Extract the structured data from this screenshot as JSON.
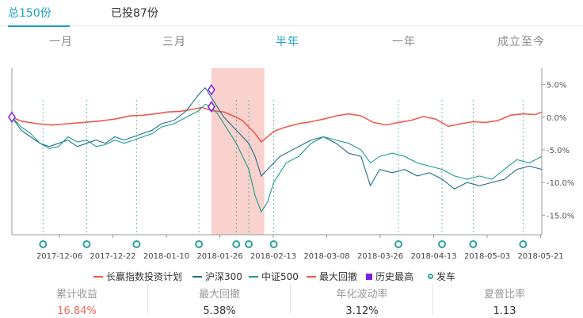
{
  "tabs": {
    "total": "总150份",
    "invested": "已投87份"
  },
  "ranges": [
    "一月",
    "三月",
    "半年",
    "一年",
    "成立至今"
  ],
  "active_range": 2,
  "legend": {
    "plan": "长赢指数投资计划",
    "hs300": "沪深300",
    "zz500": "中证500",
    "drawdown": "最大回撤",
    "high": "历史最高",
    "signal": "发车"
  },
  "colors": {
    "plan": "#f05a4a",
    "hs300": "#1f6e8c",
    "zz500": "#1a9c8c",
    "drawdown": "#f8c9c4",
    "high": "#7b1fe0",
    "signal": "#2aa39a",
    "active": "#1aa1c4"
  },
  "stats": [
    {
      "label": "累计收益",
      "value": "16.84%",
      "highlight": true
    },
    {
      "label": "最大回撤",
      "value": "5.38%",
      "highlight": false
    },
    {
      "label": "年化波动率",
      "value": "3.12%",
      "highlight": false
    },
    {
      "label": "夏普比率",
      "value": "1.13",
      "highlight": false
    }
  ],
  "chart_data": {
    "type": "line",
    "x_labels": [
      "2017-12-06",
      "2017-12-22",
      "2018-01-10",
      "2018-01-26",
      "2018-02-13",
      "2018-03-08",
      "2018-03-26",
      "2018-04-13",
      "2018-05-03",
      "2018-05-21"
    ],
    "yticks": [
      5.0,
      0.0,
      -5.0,
      -10.0,
      -15.0
    ],
    "ytick_labels": [
      "5.0%",
      "0.0%",
      "-5.0%",
      "-10.0%",
      "-15.0%"
    ],
    "ylim": [
      -18,
      7.5
    ],
    "x_days": [
      0,
      170
    ],
    "series": [
      {
        "name": "长赢指数投资计划",
        "points": [
          [
            0,
            0
          ],
          [
            3,
            -0.6
          ],
          [
            8,
            -1
          ],
          [
            13,
            -1.2
          ],
          [
            18,
            -1.0
          ],
          [
            23,
            -0.8
          ],
          [
            28,
            -0.6
          ],
          [
            33,
            -0.3
          ],
          [
            38,
            0.2
          ],
          [
            42,
            0.3
          ],
          [
            46,
            0.5
          ],
          [
            50,
            0.8
          ],
          [
            54,
            0.9
          ],
          [
            58,
            1.2
          ],
          [
            61,
            1.5
          ],
          [
            64,
            1.0
          ],
          [
            68,
            0.8
          ],
          [
            71,
            0.2
          ],
          [
            74,
            -0.5
          ],
          [
            76,
            -1.5
          ],
          [
            78,
            -2.5
          ],
          [
            80,
            -3.8
          ],
          [
            82,
            -3.0
          ],
          [
            84,
            -2.2
          ],
          [
            86,
            -1.8
          ],
          [
            88,
            -1.5
          ],
          [
            92,
            -1.0
          ],
          [
            96,
            -0.7
          ],
          [
            100,
            -0.3
          ],
          [
            104,
            0.2
          ],
          [
            108,
            0.5
          ],
          [
            112,
            0.2
          ],
          [
            116,
            -0.8
          ],
          [
            120,
            -1.2
          ],
          [
            124,
            -0.8
          ],
          [
            128,
            -0.5
          ],
          [
            132,
            0.1
          ],
          [
            136,
            -0.3
          ],
          [
            140,
            -1.4
          ],
          [
            144,
            -1.0
          ],
          [
            148,
            -0.7
          ],
          [
            152,
            -0.8
          ],
          [
            156,
            -0.5
          ],
          [
            160,
            0.3
          ],
          [
            164,
            0.5
          ],
          [
            168,
            0.4
          ],
          [
            170,
            0.8
          ]
        ]
      },
      {
        "name": "沪深300",
        "points": [
          [
            0,
            0
          ],
          [
            3,
            -2
          ],
          [
            6,
            -3
          ],
          [
            9,
            -4
          ],
          [
            12,
            -4.5
          ],
          [
            15,
            -4
          ],
          [
            18,
            -3.5
          ],
          [
            21,
            -4.5
          ],
          [
            24,
            -4
          ],
          [
            27,
            -3.5
          ],
          [
            30,
            -4
          ],
          [
            33,
            -3
          ],
          [
            36,
            -3.5
          ],
          [
            39,
            -3
          ],
          [
            42,
            -2.5
          ],
          [
            45,
            -2
          ],
          [
            48,
            -1
          ],
          [
            52,
            -0.5
          ],
          [
            56,
            1
          ],
          [
            60,
            3.5
          ],
          [
            62,
            4.5
          ],
          [
            64,
            3
          ],
          [
            66,
            1.5
          ],
          [
            68,
            0
          ],
          [
            70,
            -1
          ],
          [
            72,
            -2
          ],
          [
            74,
            -3
          ],
          [
            76,
            -4
          ],
          [
            78,
            -6
          ],
          [
            80,
            -9
          ],
          [
            82,
            -8
          ],
          [
            84,
            -7
          ],
          [
            86,
            -6
          ],
          [
            88,
            -5.5
          ],
          [
            92,
            -4.5
          ],
          [
            96,
            -3.5
          ],
          [
            100,
            -3
          ],
          [
            104,
            -4
          ],
          [
            108,
            -5.5
          ],
          [
            112,
            -6
          ],
          [
            115,
            -10.5
          ],
          [
            118,
            -8
          ],
          [
            122,
            -8.5
          ],
          [
            126,
            -8
          ],
          [
            130,
            -9
          ],
          [
            134,
            -8.5
          ],
          [
            138,
            -9.5
          ],
          [
            142,
            -11
          ],
          [
            146,
            -10
          ],
          [
            150,
            -10.5
          ],
          [
            154,
            -10
          ],
          [
            158,
            -9.5
          ],
          [
            162,
            -8
          ],
          [
            166,
            -7.5
          ],
          [
            170,
            -8
          ]
        ]
      },
      {
        "name": "中证500",
        "points": [
          [
            0,
            0
          ],
          [
            3,
            -1.5
          ],
          [
            6,
            -2.5
          ],
          [
            9,
            -4
          ],
          [
            12,
            -4.8
          ],
          [
            15,
            -4.5
          ],
          [
            18,
            -3
          ],
          [
            21,
            -3.8
          ],
          [
            24,
            -3.5
          ],
          [
            27,
            -4.5
          ],
          [
            30,
            -4.2
          ],
          [
            33,
            -3.5
          ],
          [
            36,
            -4
          ],
          [
            39,
            -3.5
          ],
          [
            42,
            -3
          ],
          [
            45,
            -2.5
          ],
          [
            48,
            -1.5
          ],
          [
            52,
            -1
          ],
          [
            56,
            0
          ],
          [
            60,
            1
          ],
          [
            62,
            2
          ],
          [
            64,
            1.5
          ],
          [
            66,
            0.5
          ],
          [
            68,
            -1
          ],
          [
            70,
            -2.5
          ],
          [
            72,
            -4
          ],
          [
            74,
            -6
          ],
          [
            76,
            -8
          ],
          [
            78,
            -12
          ],
          [
            80,
            -14.5
          ],
          [
            82,
            -13
          ],
          [
            84,
            -10
          ],
          [
            86,
            -8.5
          ],
          [
            88,
            -7
          ],
          [
            92,
            -6
          ],
          [
            96,
            -4
          ],
          [
            100,
            -3
          ],
          [
            104,
            -3.5
          ],
          [
            108,
            -4
          ],
          [
            112,
            -5
          ],
          [
            115,
            -7
          ],
          [
            118,
            -6
          ],
          [
            122,
            -5.5
          ],
          [
            126,
            -6
          ],
          [
            130,
            -7
          ],
          [
            134,
            -7.5
          ],
          [
            138,
            -8
          ],
          [
            142,
            -9
          ],
          [
            146,
            -9.5
          ],
          [
            150,
            -9
          ],
          [
            154,
            -9.5
          ],
          [
            158,
            -8
          ],
          [
            162,
            -6.5
          ],
          [
            166,
            -7
          ],
          [
            170,
            -6
          ]
        ]
      }
    ],
    "drawdown_range": [
      64,
      81
    ],
    "highs": [
      [
        0,
        0
      ],
      [
        64,
        4.2
      ],
      [
        64,
        1.6
      ]
    ],
    "signals": [
      10,
      24,
      40,
      60,
      72,
      76,
      84,
      124,
      138,
      148,
      164
    ]
  }
}
